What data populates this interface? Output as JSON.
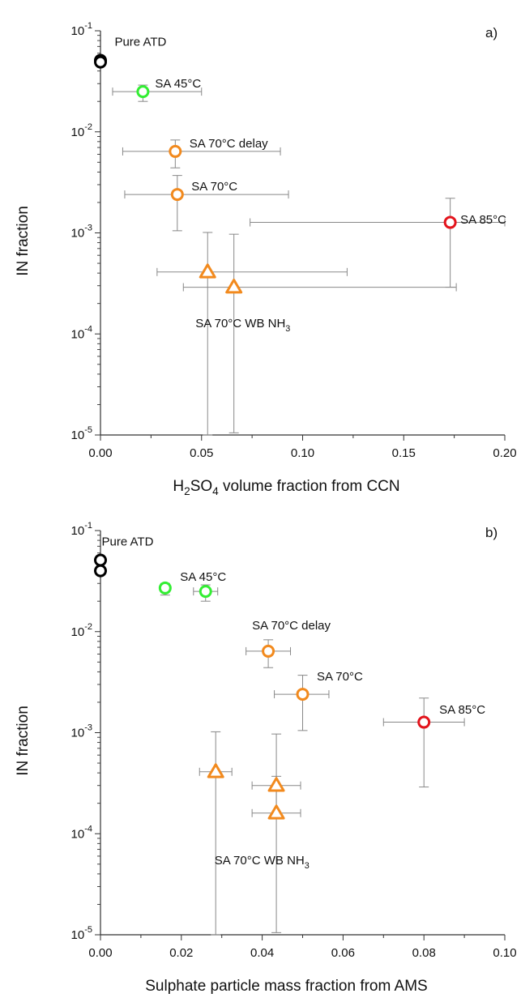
{
  "chart_data": [
    {
      "panel_label": "a)",
      "type": "scatter",
      "xlabel_parts": [
        [
          "H",
          ""
        ],
        [
          "2",
          "sub"
        ],
        [
          "SO",
          ""
        ],
        [
          "4",
          "sub"
        ],
        [
          " volume fraction from CCN",
          ""
        ]
      ],
      "ylabel": "IN fraction",
      "xlim": [
        0,
        0.2
      ],
      "ylim": [
        1e-05,
        0.1
      ],
      "yscale": "log",
      "x_ticks": [
        "0.00",
        "0.05",
        "0.10",
        "0.15",
        "0.20"
      ],
      "y_ticks": [
        {
          "base": "10",
          "exp": "-5"
        },
        {
          "base": "10",
          "exp": "-4"
        },
        {
          "base": "10",
          "exp": "-3"
        },
        {
          "base": "10",
          "exp": "-2"
        },
        {
          "base": "10",
          "exp": "-1"
        }
      ],
      "colors": {
        "pure": "#000000",
        "sa45": "#33ee33",
        "sa70": "#f28a1e",
        "sa85": "#e3141c"
      },
      "points": [
        {
          "x": 0.0,
          "y": 0.051,
          "marker": "circle",
          "color": "#000000"
        },
        {
          "x": 0.0,
          "y": 0.049,
          "marker": "circle",
          "color": "#000000"
        },
        {
          "x": 0.021,
          "y": 0.025,
          "xerr": [
            0.006,
            0.05
          ],
          "yerr": [
            0.02,
            0.029
          ],
          "marker": "circle",
          "color": "#33ee33"
        },
        {
          "x": 0.037,
          "y": 0.0064,
          "xerr": [
            0.011,
            0.089
          ],
          "yerr": [
            0.0044,
            0.0083
          ],
          "marker": "circle",
          "color": "#f28a1e"
        },
        {
          "x": 0.038,
          "y": 0.0024,
          "xerr": [
            0.012,
            0.093
          ],
          "yerr": [
            0.00105,
            0.0037
          ],
          "marker": "circle",
          "color": "#f28a1e"
        },
        {
          "x": 0.173,
          "y": 0.00127,
          "xerr": [
            0.074,
            0.2
          ],
          "yerr": [
            0.00029,
            0.0022
          ],
          "marker": "circle",
          "color": "#e3141c"
        },
        {
          "x": 0.053,
          "y": 0.00041,
          "xerr": [
            0.028,
            0.122
          ],
          "yerr": [
            1e-05,
            0.00101
          ],
          "marker": "triangle",
          "color": "#f28a1e"
        },
        {
          "x": 0.066,
          "y": 0.00029,
          "xerr": [
            0.041,
            0.176
          ],
          "yerr": [
            1.05e-05,
            0.00097
          ],
          "marker": "triangle",
          "color": "#f28a1e"
        }
      ],
      "annotations": [
        {
          "parts": [
            [
              "Pure ATD",
              ""
            ]
          ],
          "x": 0.007,
          "y": 0.078
        },
        {
          "parts": [
            [
              "SA 45°C",
              ""
            ]
          ],
          "x": 0.027,
          "y": 0.03
        },
        {
          "parts": [
            [
              "SA 70°C delay",
              ""
            ]
          ],
          "x": 0.044,
          "y": 0.0077
        },
        {
          "parts": [
            [
              "SA 70°C",
              ""
            ]
          ],
          "x": 0.045,
          "y": 0.0029
        },
        {
          "parts": [
            [
              "SA 85°C",
              ""
            ]
          ],
          "x": 0.178,
          "y": 0.00135
        },
        {
          "parts": [
            [
              "SA 70°C WB NH",
              ""
            ],
            [
              "3",
              "sub"
            ]
          ],
          "x": 0.047,
          "y": 0.000128
        }
      ]
    },
    {
      "panel_label": "b)",
      "type": "scatter",
      "xlabel_parts": [
        [
          "Sulphate particle mass fraction from AMS",
          ""
        ]
      ],
      "ylabel": "IN fraction",
      "xlim": [
        0,
        0.1
      ],
      "ylim": [
        1e-05,
        0.1
      ],
      "yscale": "log",
      "x_ticks": [
        "0.00",
        "0.02",
        "0.04",
        "0.06",
        "0.08",
        "0.10"
      ],
      "y_ticks": [
        {
          "base": "10",
          "exp": "-5"
        },
        {
          "base": "10",
          "exp": "-4"
        },
        {
          "base": "10",
          "exp": "-3"
        },
        {
          "base": "10",
          "exp": "-2"
        },
        {
          "base": "10",
          "exp": "-1"
        }
      ],
      "colors": {
        "pure": "#000000",
        "sa45": "#33ee33",
        "sa70": "#f28a1e",
        "sa85": "#e3141c"
      },
      "points": [
        {
          "x": 0.0,
          "y": 0.051,
          "marker": "circle",
          "color": "#000000"
        },
        {
          "x": 0.0,
          "y": 0.04,
          "marker": "circle",
          "color": "#000000"
        },
        {
          "x": 0.016,
          "y": 0.027,
          "yerr": [
            0.023,
            0.03
          ],
          "marker": "circle",
          "color": "#33ee33"
        },
        {
          "x": 0.026,
          "y": 0.025,
          "xerr": [
            0.023,
            0.029
          ],
          "yerr": [
            0.02,
            0.029
          ],
          "marker": "circle",
          "color": "#33ee33"
        },
        {
          "x": 0.0415,
          "y": 0.0064,
          "xerr": [
            0.036,
            0.047
          ],
          "yerr": [
            0.0044,
            0.0083
          ],
          "marker": "circle",
          "color": "#f28a1e"
        },
        {
          "x": 0.05,
          "y": 0.0024,
          "xerr": [
            0.043,
            0.0565
          ],
          "yerr": [
            0.00105,
            0.0037
          ],
          "marker": "circle",
          "color": "#f28a1e"
        },
        {
          "x": 0.08,
          "y": 0.00127,
          "xerr": [
            0.07,
            0.09
          ],
          "yerr": [
            0.00029,
            0.0022
          ],
          "marker": "circle",
          "color": "#e3141c"
        },
        {
          "x": 0.0285,
          "y": 0.00041,
          "xerr": [
            0.0245,
            0.0325
          ],
          "yerr": [
            1e-05,
            0.00102
          ],
          "marker": "triangle",
          "color": "#f28a1e"
        },
        {
          "x": 0.0435,
          "y": 0.0003,
          "xerr": [
            0.0375,
            0.0495
          ],
          "yerr": [
            1.05e-05,
            0.00097
          ],
          "marker": "triangle",
          "color": "#f28a1e"
        },
        {
          "x": 0.0435,
          "y": 0.00016,
          "xerr": [
            0.0375,
            0.0495
          ],
          "yerr": [
            0.00016,
            0.00037
          ],
          "marker": "triangle",
          "color": "#f28a1e"
        }
      ],
      "annotations": [
        {
          "parts": [
            [
              "Pure ATD",
              ""
            ]
          ],
          "x": 0.0003,
          "y": 0.078
        },
        {
          "parts": [
            [
              "SA 45°C",
              ""
            ]
          ],
          "x": 0.0197,
          "y": 0.035
        },
        {
          "parts": [
            [
              "SA 70°C delay",
              ""
            ]
          ],
          "x": 0.0375,
          "y": 0.0115
        },
        {
          "parts": [
            [
              "SA 70°C",
              ""
            ]
          ],
          "x": 0.0535,
          "y": 0.0036
        },
        {
          "parts": [
            [
              "SA 85°C",
              ""
            ]
          ],
          "x": 0.0838,
          "y": 0.0017
        },
        {
          "parts": [
            [
              "SA 70°C WB NH",
              ""
            ],
            [
              "3",
              "sub"
            ]
          ],
          "x": 0.0282,
          "y": 5.45e-05
        }
      ]
    }
  ]
}
